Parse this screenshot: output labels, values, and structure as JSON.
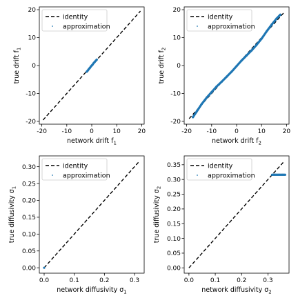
{
  "figure": {
    "background": "#ffffff",
    "identity_color": "#000000",
    "approx_color": "#1f77b4"
  },
  "chart_data": [
    {
      "type": "scatter",
      "title": "",
      "xlabel": "network drift f",
      "xlabel_sub": "1",
      "ylabel": "true drift f",
      "ylabel_sub": "1",
      "xlim": [
        -21,
        21
      ],
      "ylim": [
        -21,
        21
      ],
      "xticks": [
        -20,
        -10,
        0,
        10,
        20
      ],
      "yticks": [
        -20,
        -10,
        0,
        10,
        20
      ],
      "grid": false,
      "legend_position": "top-left",
      "series": [
        {
          "name": "identity",
          "style": "dashed-line",
          "color": "#000000",
          "x": [
            -19.5,
            19.5
          ],
          "y": [
            -19.5,
            19.5
          ]
        },
        {
          "name": "approximation",
          "style": "points",
          "color": "#1f77b4",
          "x": [
            -2.0,
            -1.6,
            -1.2,
            -0.8,
            -0.4,
            0.0,
            0.4,
            0.8,
            1.2,
            1.6,
            2.0
          ],
          "y": [
            -2.2,
            -1.8,
            -1.3,
            -0.9,
            -0.4,
            0.0,
            0.4,
            0.9,
            1.3,
            1.7,
            2.1
          ]
        }
      ]
    },
    {
      "type": "scatter",
      "title": "",
      "xlabel": "network drift f",
      "xlabel_sub": "2",
      "ylabel": "true drift f",
      "ylabel_sub": "2",
      "xlim": [
        -21,
        21
      ],
      "ylim": [
        -21,
        21
      ],
      "xticks": [
        -20,
        -10,
        0,
        10,
        20
      ],
      "yticks": [
        -20,
        -10,
        0,
        10,
        20
      ],
      "grid": false,
      "legend_position": "top-left",
      "series": [
        {
          "name": "identity",
          "style": "dashed-line",
          "color": "#000000",
          "x": [
            -19,
            19
          ],
          "y": [
            -19,
            19
          ]
        },
        {
          "name": "approximation",
          "style": "points",
          "color": "#1f77b4",
          "x": [
            -17.5,
            -16,
            -14,
            -12,
            -10,
            -8,
            -6,
            -4,
            -2,
            0,
            2,
            4,
            6,
            8,
            10,
            12,
            14,
            16,
            17.5
          ],
          "y": [
            -18.5,
            -16.5,
            -13.8,
            -11.5,
            -9.5,
            -7.5,
            -5.8,
            -4.0,
            -2.2,
            -0.2,
            1.8,
            3.6,
            5.4,
            7.4,
            9.6,
            12.2,
            14.6,
            16.8,
            18.2
          ]
        }
      ]
    },
    {
      "type": "scatter",
      "title": "",
      "xlabel": "network diffusivity σ",
      "xlabel_sub": "1",
      "ylabel": "true diffusivity σ",
      "ylabel_sub": "1",
      "xlim": [
        -0.016,
        0.332
      ],
      "ylim": [
        -0.016,
        0.332
      ],
      "xticks": [
        0.0,
        0.1,
        0.2,
        0.3
      ],
      "yticks": [
        0.0,
        0.05,
        0.1,
        0.15,
        0.2,
        0.25,
        0.3
      ],
      "xtick_labels": [
        "0.0",
        "0.1",
        "0.2",
        "0.3"
      ],
      "ytick_labels": [
        "0.00",
        "0.05",
        "0.10",
        "0.15",
        "0.20",
        "0.25",
        "0.30"
      ],
      "grid": false,
      "legend_position": "top-left",
      "series": [
        {
          "name": "identity",
          "style": "dashed-line",
          "color": "#000000",
          "x": [
            0.0,
            0.316
          ],
          "y": [
            0.0,
            0.316
          ]
        },
        {
          "name": "approximation",
          "style": "points",
          "color": "#1f77b4",
          "x": [
            0.0
          ],
          "y": [
            0.0
          ]
        }
      ]
    },
    {
      "type": "scatter",
      "title": "",
      "xlabel": "network diffusivity σ",
      "xlabel_sub": "2",
      "ylabel": "true diffusivity σ",
      "ylabel_sub": "2",
      "xlim": [
        -0.018,
        0.38
      ],
      "ylim": [
        -0.018,
        0.38
      ],
      "xticks": [
        0.0,
        0.1,
        0.2,
        0.3
      ],
      "yticks": [
        0.0,
        0.05,
        0.1,
        0.15,
        0.2,
        0.25,
        0.3,
        0.35
      ],
      "xtick_labels": [
        "0.0",
        "0.1",
        "0.2",
        "0.3"
      ],
      "ytick_labels": [
        "0.00",
        "0.05",
        "0.10",
        "0.15",
        "0.20",
        "0.25",
        "0.30",
        "0.35"
      ],
      "grid": false,
      "legend_position": "top-left",
      "series": [
        {
          "name": "identity",
          "style": "dashed-line",
          "color": "#000000",
          "x": [
            0.0,
            0.36
          ],
          "y": [
            0.0,
            0.36
          ]
        },
        {
          "name": "approximation",
          "style": "points",
          "color": "#1f77b4",
          "x": [
            0.316,
            0.32,
            0.325,
            0.33,
            0.335,
            0.34,
            0.345,
            0.35,
            0.355,
            0.36,
            0.365
          ],
          "y": [
            0.316,
            0.316,
            0.316,
            0.316,
            0.316,
            0.316,
            0.316,
            0.316,
            0.316,
            0.316,
            0.316
          ]
        }
      ]
    }
  ]
}
